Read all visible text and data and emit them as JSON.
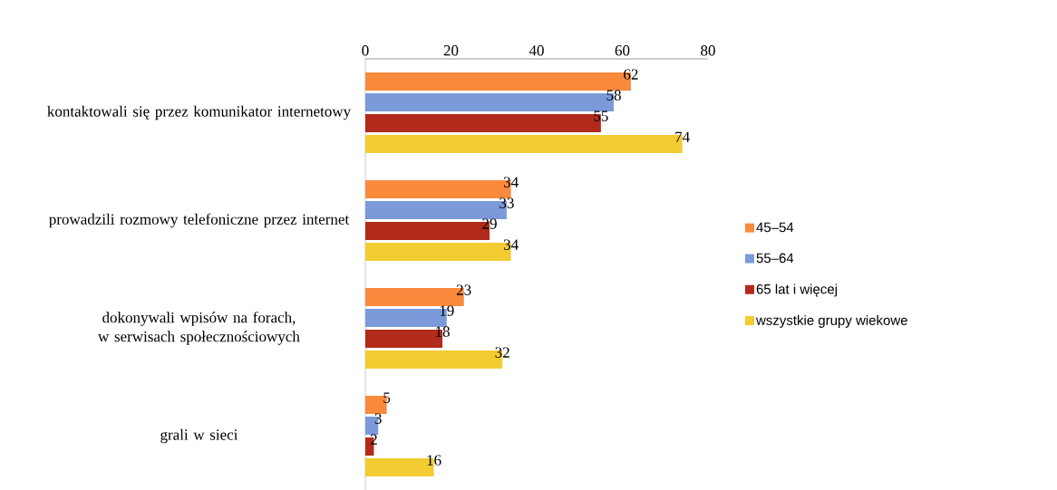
{
  "chart_data": {
    "type": "bar",
    "orientation": "horizontal",
    "categories": [
      "kontaktowali się przez komunikator internetowy",
      "prowadzili rozmowy telefoniczne przez internet",
      "dokonywali wpisów na forach, w serwisach społecznościowych",
      "grali w sieci"
    ],
    "series": [
      {
        "name": "45–54",
        "color": "#f98a3c",
        "values": [
          62,
          34,
          23,
          5
        ]
      },
      {
        "name": "55–64",
        "color": "#7a9ada",
        "values": [
          58,
          33,
          19,
          3
        ]
      },
      {
        "name": "65 lat i więcej",
        "color": "#b22a1a",
        "values": [
          55,
          29,
          18,
          2
        ]
      },
      {
        "name": "wszystkie grupy wiekowe",
        "color": "#f2cc30",
        "values": [
          74,
          34,
          32,
          16
        ]
      }
    ],
    "xlim": [
      0,
      80
    ],
    "xticks": [
      0,
      20,
      40,
      60,
      80
    ],
    "data_labels": true,
    "legend": "right"
  }
}
